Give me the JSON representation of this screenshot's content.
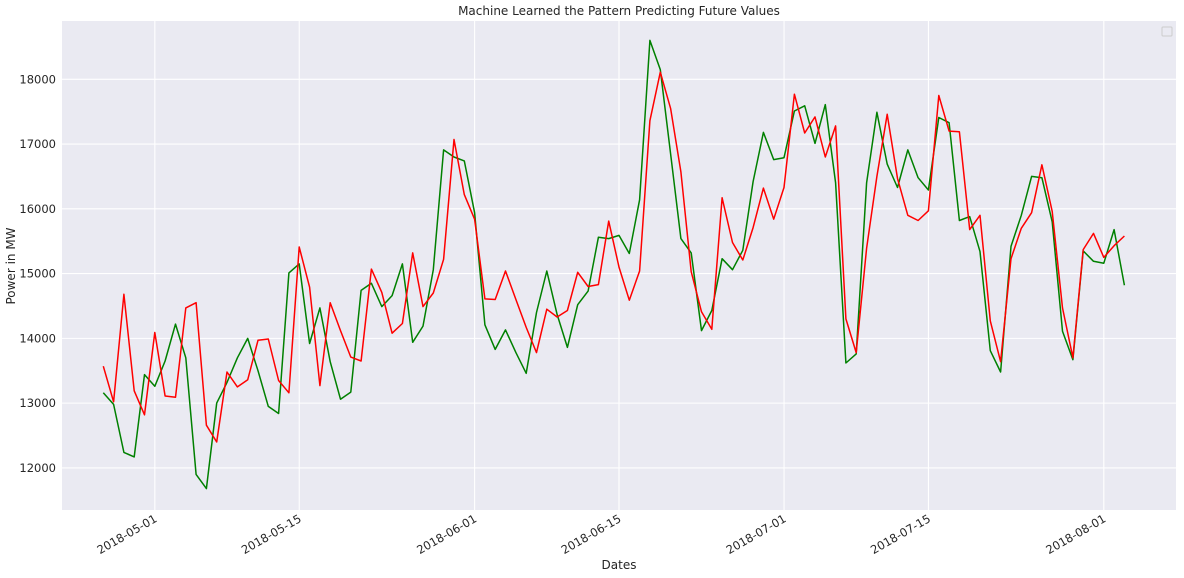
{
  "chart_data": {
    "type": "line",
    "title": "Machine Learned the Pattern Predicting Future Values",
    "xlabel": "Dates",
    "ylabel": "Power in MW",
    "x_start": "2018-04-26",
    "x_step_days": 1,
    "xlim": [
      "2018-04-22",
      "2018-08-08"
    ],
    "ylim": [
      11350,
      18900
    ],
    "yticks": [
      12000,
      13000,
      14000,
      15000,
      16000,
      17000,
      18000
    ],
    "xticks": [
      "2018-05-01",
      "2018-05-15",
      "2018-06-01",
      "2018-06-15",
      "2018-07-01",
      "2018-07-15",
      "2018-08-01"
    ],
    "grid": true,
    "legend": "top-right (empty)",
    "colors": {
      "background": "#eaeaf2",
      "grid": "#ffffff",
      "actual": "#008000",
      "predicted": "#ff0000"
    },
    "series": [
      {
        "color": "#008000",
        "values": [
          13160,
          12980,
          12240,
          12170,
          13440,
          13260,
          13650,
          14220,
          13700,
          11900,
          11680,
          13000,
          13320,
          13700,
          14000,
          13500,
          12950,
          12840,
          15010,
          15150,
          13920,
          14470,
          13640,
          13060,
          13170,
          14740,
          14850,
          14490,
          14660,
          15150,
          13940,
          14190,
          15060,
          16910,
          16800,
          16740,
          15940,
          14210,
          13830,
          14130,
          13780,
          13460,
          14400,
          15040,
          14370,
          13860,
          14520,
          14730,
          15560,
          15540,
          15590,
          15310,
          16140,
          18600,
          18150,
          16850,
          15540,
          15320,
          14120,
          14430,
          15230,
          15060,
          15360,
          16420,
          17180,
          16760,
          16790,
          17510,
          17590,
          17010,
          17610,
          16400,
          13620,
          13760,
          16400,
          17490,
          16690,
          16330,
          16910,
          16480,
          16290,
          17410,
          17330,
          15820,
          15880,
          15340,
          13810,
          13480,
          15420,
          15900,
          16500,
          16480,
          15800,
          14110,
          13670,
          15350,
          15190,
          15160,
          15680,
          14820
        ]
      },
      {
        "color": "#ff0000",
        "values": [
          13570,
          13020,
          14680,
          13190,
          12820,
          14090,
          13110,
          13090,
          14470,
          14550,
          12660,
          12400,
          13480,
          13250,
          13360,
          13970,
          13990,
          13350,
          13160,
          15410,
          14790,
          13270,
          14550,
          14120,
          13710,
          13650,
          15070,
          14710,
          14080,
          14230,
          15320,
          14490,
          14700,
          15220,
          17070,
          16220,
          15840,
          14610,
          14600,
          15040,
          14600,
          14170,
          13780,
          14450,
          14330,
          14430,
          15020,
          14800,
          14830,
          15810,
          15100,
          14590,
          15040,
          17360,
          18110,
          17550,
          16570,
          15030,
          14410,
          14140,
          16170,
          15480,
          15210,
          15710,
          16320,
          15840,
          16330,
          17770,
          17170,
          17420,
          16800,
          17280,
          14300,
          13780,
          15390,
          16500,
          17460,
          16470,
          15900,
          15820,
          15970,
          17750,
          17200,
          17190,
          15680,
          15900,
          14270,
          13640,
          15230,
          15700,
          15940,
          16680,
          15960,
          14470,
          13700,
          15370,
          15620,
          15250,
          15430,
          15580
        ]
      }
    ]
  }
}
